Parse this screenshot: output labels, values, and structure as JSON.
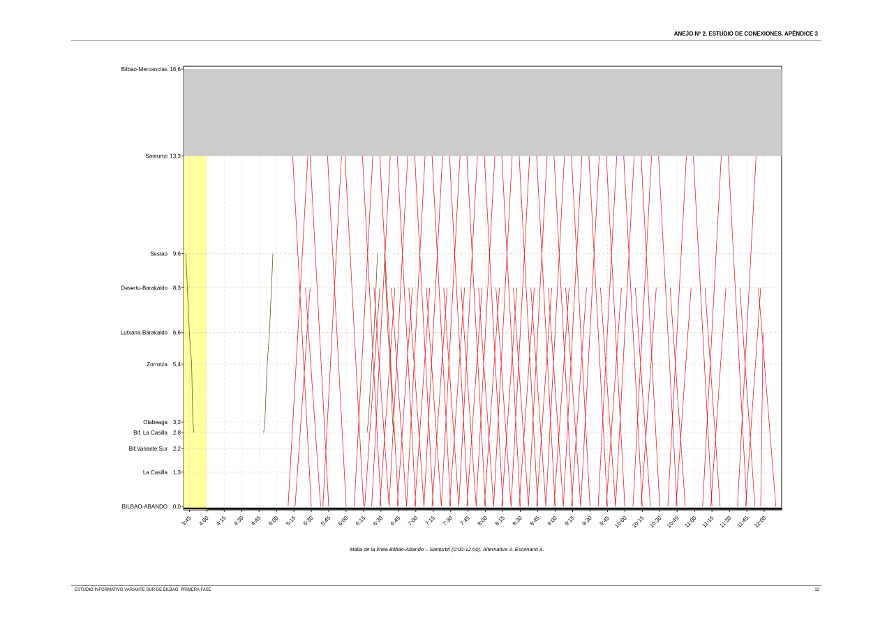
{
  "header": {
    "title": "ANEJO Nº 2. ESTUDIO DE CONEXIONES. APÉNDICE 3"
  },
  "footer": {
    "left": "ESTUDIO INFORMATIVO VARIANTE SUR DE BILBAO. PRIMERA FASE",
    "page": "12"
  },
  "caption": "Malla de la línea Bilbao-Abando – Santurtzi (0:00-12:00). Alternativa 3. Escenario A.",
  "colors": {
    "train": "#e8202a",
    "freight": "#6b5a1e",
    "blocked": "#cccccc",
    "highlight": "#ffffa0"
  },
  "chart_data": {
    "type": "line",
    "title": "",
    "xlabel": "",
    "ylabel": "",
    "xlim": [
      "3:40",
      "12:15"
    ],
    "ylim": [
      0,
      16.6
    ],
    "x_ticks": [
      "3:45",
      "4:00",
      "4:15",
      "4:30",
      "4:45",
      "5:00",
      "5:15",
      "5:30",
      "5:45",
      "6:00",
      "6:15",
      "6:30",
      "6:45",
      "7:00",
      "7:15",
      "7:30",
      "7:45",
      "8:00",
      "8:15",
      "8:30",
      "8:45",
      "9:00",
      "9:15",
      "9:30",
      "9:45",
      "10:00",
      "10:15",
      "10:30",
      "10:45",
      "11:00",
      "11:15",
      "11:30",
      "11:45",
      "12:00"
    ],
    "stations": [
      {
        "name": "Bilbao-Mercancías",
        "km": "16,6",
        "value": 16.6
      },
      {
        "name": "Santurtzi",
        "km": "13,3",
        "value": 13.3
      },
      {
        "name": "Sestao",
        "km": "9,6",
        "value": 9.6
      },
      {
        "name": "Desertu-Barakaldo",
        "km": "8,3",
        "value": 8.3
      },
      {
        "name": "Lutxana-Barakaldo",
        "km": "6,6",
        "value": 6.6
      },
      {
        "name": "Zorrotza",
        "km": "5,4",
        "value": 5.4
      },
      {
        "name": "Olabeaga",
        "km": "3,2",
        "value": 3.2
      },
      {
        "name": "Bif. La Casilla",
        "km": "2,8",
        "value": 2.8
      },
      {
        "name": "Bif.Variante Sur",
        "km": "2,2",
        "value": 2.2
      },
      {
        "name": "La Casilla",
        "km": "1,3",
        "value": 1.3
      },
      {
        "name": "BILBAO-ABANDO",
        "km": "0,0",
        "value": 0.0
      }
    ],
    "blocked_band": {
      "from": 13.3,
      "to": 16.6
    },
    "highlight_band": {
      "from": "3:40",
      "to": "4:00"
    },
    "series": [
      {
        "kind": "freight",
        "points": [
          [
            "3:42",
            9.6
          ],
          [
            "3:45",
            6.6
          ],
          [
            "3:47",
            5.4
          ],
          [
            "3:48",
            3.2
          ],
          [
            "3:49",
            2.8
          ]
        ]
      },
      {
        "kind": "freight",
        "points": [
          [
            "4:49",
            2.8
          ],
          [
            "4:50",
            3.2
          ],
          [
            "4:52",
            5.4
          ],
          [
            "4:54",
            6.6
          ],
          [
            "4:57",
            9.6
          ]
        ]
      },
      {
        "kind": "freight",
        "points": [
          [
            "6:18",
            2.8
          ],
          [
            "6:19",
            3.2
          ],
          [
            "6:22",
            5.4
          ],
          [
            "6:24",
            6.6
          ],
          [
            "6:27",
            9.6
          ]
        ]
      },
      {
        "kind": "freight",
        "points": [
          [
            "6:33",
            9.6
          ],
          [
            "6:36",
            6.6
          ],
          [
            "6:38",
            5.4
          ],
          [
            "6:40",
            3.2
          ],
          [
            "6:41",
            2.8
          ]
        ]
      },
      {
        "kind": "up",
        "start": "5:10",
        "end": "5:27",
        "to": 13.3
      },
      {
        "kind": "up",
        "start": "5:16",
        "end": "5:29",
        "to": 8.3
      },
      {
        "kind": "up",
        "start": "5:40",
        "end": "5:56",
        "to": 13.3
      },
      {
        "kind": "up",
        "start": "6:07",
        "end": "6:23",
        "to": 13.3
      },
      {
        "kind": "up",
        "start": "6:16",
        "end": "6:29",
        "to": 8.3
      },
      {
        "kind": "up",
        "start": "6:22",
        "end": "6:38",
        "to": 13.3
      },
      {
        "kind": "up",
        "start": "6:29",
        "end": "6:42",
        "to": 8.3
      },
      {
        "kind": "up",
        "start": "6:37",
        "end": "6:53",
        "to": 13.3
      },
      {
        "kind": "up",
        "start": "6:44",
        "end": "6:57",
        "to": 8.3
      },
      {
        "kind": "up",
        "start": "6:52",
        "end": "7:08",
        "to": 13.3
      },
      {
        "kind": "up",
        "start": "6:59",
        "end": "7:12",
        "to": 8.3
      },
      {
        "kind": "up",
        "start": "7:07",
        "end": "7:23",
        "to": 13.3
      },
      {
        "kind": "up",
        "start": "7:14",
        "end": "7:27",
        "to": 8.3
      },
      {
        "kind": "up",
        "start": "7:22",
        "end": "7:38",
        "to": 13.3
      },
      {
        "kind": "up",
        "start": "7:29",
        "end": "7:42",
        "to": 8.3
      },
      {
        "kind": "up",
        "start": "7:37",
        "end": "7:53",
        "to": 13.3
      },
      {
        "kind": "up",
        "start": "7:44",
        "end": "7:57",
        "to": 8.3
      },
      {
        "kind": "up",
        "start": "7:52",
        "end": "8:08",
        "to": 13.3
      },
      {
        "kind": "up",
        "start": "7:59",
        "end": "8:12",
        "to": 8.3
      },
      {
        "kind": "up",
        "start": "8:07",
        "end": "8:23",
        "to": 13.3
      },
      {
        "kind": "up",
        "start": "8:14",
        "end": "8:27",
        "to": 8.3
      },
      {
        "kind": "up",
        "start": "8:22",
        "end": "8:38",
        "to": 13.3
      },
      {
        "kind": "up",
        "start": "8:29",
        "end": "8:42",
        "to": 8.3
      },
      {
        "kind": "up",
        "start": "8:37",
        "end": "8:53",
        "to": 13.3
      },
      {
        "kind": "up",
        "start": "8:44",
        "end": "8:57",
        "to": 8.3
      },
      {
        "kind": "up",
        "start": "8:52",
        "end": "9:08",
        "to": 13.3
      },
      {
        "kind": "up",
        "start": "8:59",
        "end": "9:12",
        "to": 8.3
      },
      {
        "kind": "up",
        "start": "9:07",
        "end": "9:23",
        "to": 13.3
      },
      {
        "kind": "up",
        "start": "9:14",
        "end": "9:27",
        "to": 8.3
      },
      {
        "kind": "up",
        "start": "9:22",
        "end": "9:38",
        "to": 13.3
      },
      {
        "kind": "up",
        "start": "9:37",
        "end": "9:53",
        "to": 13.3
      },
      {
        "kind": "up",
        "start": "9:44",
        "end": "9:57",
        "to": 8.3
      },
      {
        "kind": "up",
        "start": "9:52",
        "end": "10:08",
        "to": 13.3
      },
      {
        "kind": "up",
        "start": "10:07",
        "end": "10:23",
        "to": 13.3
      },
      {
        "kind": "up",
        "start": "10:14",
        "end": "10:27",
        "to": 8.3
      },
      {
        "kind": "up",
        "start": "10:37",
        "end": "10:53",
        "to": 13.3
      },
      {
        "kind": "up",
        "start": "10:44",
        "end": "10:57",
        "to": 8.3
      },
      {
        "kind": "up",
        "start": "11:07",
        "end": "11:23",
        "to": 13.3
      },
      {
        "kind": "up",
        "start": "11:14",
        "end": "11:27",
        "to": 8.3
      },
      {
        "kind": "up",
        "start": "11:37",
        "end": "11:53",
        "to": 13.3
      },
      {
        "kind": "up",
        "start": "11:44",
        "end": "11:57",
        "to": 8.3
      },
      {
        "kind": "up",
        "start": "11:57",
        "end": "11:59",
        "to": 6.6
      },
      {
        "kind": "down",
        "start": "5:14",
        "end": "5:30",
        "from": 13.3
      },
      {
        "kind": "down",
        "start": "5:25",
        "end": "5:38",
        "from": 8.3
      },
      {
        "kind": "down",
        "start": "5:29",
        "end": "5:45",
        "from": 13.3
      },
      {
        "kind": "down",
        "start": "5:44",
        "end": "6:00",
        "from": 13.3
      },
      {
        "kind": "down",
        "start": "5:59",
        "end": "6:15",
        "from": 13.3
      },
      {
        "kind": "down",
        "start": "6:14",
        "end": "6:30",
        "from": 13.3
      },
      {
        "kind": "down",
        "start": "6:24",
        "end": "6:37",
        "from": 8.3
      },
      {
        "kind": "down",
        "start": "6:29",
        "end": "6:45",
        "from": 13.3
      },
      {
        "kind": "down",
        "start": "6:39",
        "end": "6:52",
        "from": 8.3
      },
      {
        "kind": "down",
        "start": "6:44",
        "end": "7:00",
        "from": 13.3
      },
      {
        "kind": "down",
        "start": "6:54",
        "end": "7:07",
        "from": 8.3
      },
      {
        "kind": "down",
        "start": "6:59",
        "end": "7:15",
        "from": 13.3
      },
      {
        "kind": "down",
        "start": "7:09",
        "end": "7:22",
        "from": 8.3
      },
      {
        "kind": "down",
        "start": "7:14",
        "end": "7:30",
        "from": 13.3
      },
      {
        "kind": "down",
        "start": "7:24",
        "end": "7:37",
        "from": 8.3
      },
      {
        "kind": "down",
        "start": "7:29",
        "end": "7:45",
        "from": 13.3
      },
      {
        "kind": "down",
        "start": "7:39",
        "end": "7:52",
        "from": 8.3
      },
      {
        "kind": "down",
        "start": "7:44",
        "end": "8:00",
        "from": 13.3
      },
      {
        "kind": "down",
        "start": "7:54",
        "end": "8:07",
        "from": 8.3
      },
      {
        "kind": "down",
        "start": "7:59",
        "end": "8:15",
        "from": 13.3
      },
      {
        "kind": "down",
        "start": "8:09",
        "end": "8:22",
        "from": 8.3
      },
      {
        "kind": "down",
        "start": "8:14",
        "end": "8:30",
        "from": 13.3
      },
      {
        "kind": "down",
        "start": "8:24",
        "end": "8:37",
        "from": 8.3
      },
      {
        "kind": "down",
        "start": "8:29",
        "end": "8:45",
        "from": 13.3
      },
      {
        "kind": "down",
        "start": "8:39",
        "end": "8:52",
        "from": 8.3
      },
      {
        "kind": "down",
        "start": "8:44",
        "end": "9:00",
        "from": 13.3
      },
      {
        "kind": "down",
        "start": "8:54",
        "end": "9:07",
        "from": 8.3
      },
      {
        "kind": "down",
        "start": "8:59",
        "end": "9:15",
        "from": 13.3
      },
      {
        "kind": "down",
        "start": "9:09",
        "end": "9:22",
        "from": 8.3
      },
      {
        "kind": "down",
        "start": "9:14",
        "end": "9:30",
        "from": 13.3
      },
      {
        "kind": "down",
        "start": "9:29",
        "end": "9:45",
        "from": 13.3
      },
      {
        "kind": "down",
        "start": "9:39",
        "end": "9:52",
        "from": 8.3
      },
      {
        "kind": "down",
        "start": "9:44",
        "end": "10:00",
        "from": 13.3
      },
      {
        "kind": "down",
        "start": "9:59",
        "end": "10:15",
        "from": 13.3
      },
      {
        "kind": "down",
        "start": "10:09",
        "end": "10:22",
        "from": 8.3
      },
      {
        "kind": "down",
        "start": "10:14",
        "end": "10:30",
        "from": 13.3
      },
      {
        "kind": "down",
        "start": "10:29",
        "end": "10:45",
        "from": 13.3
      },
      {
        "kind": "down",
        "start": "10:39",
        "end": "10:52",
        "from": 8.3
      },
      {
        "kind": "down",
        "start": "10:59",
        "end": "11:15",
        "from": 13.3
      },
      {
        "kind": "down",
        "start": "11:09",
        "end": "11:22",
        "from": 8.3
      },
      {
        "kind": "down",
        "start": "11:29",
        "end": "11:45",
        "from": 13.3
      },
      {
        "kind": "down",
        "start": "11:39",
        "end": "11:52",
        "from": 8.3
      },
      {
        "kind": "down",
        "start": "11:55",
        "end": "12:10",
        "from": 8.3
      }
    ]
  }
}
